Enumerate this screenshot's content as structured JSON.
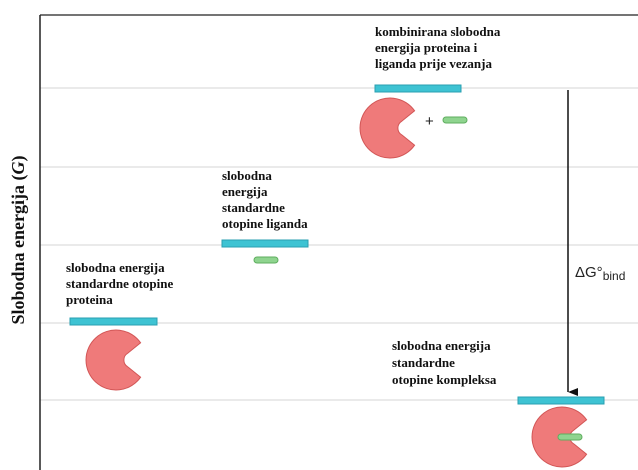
{
  "axis_label": [
    "Slobodna energija (",
    "G",
    ")"
  ],
  "levels": [
    {
      "label": [
        "slobodna energija",
        "standardne otopine",
        "proteina"
      ]
    },
    {
      "label": [
        "slobodna",
        "energija",
        "standardne",
        "otopine liganda"
      ]
    },
    {
      "label": [
        "kombinirana slobodna",
        "energija proteina i",
        "liganda prije vezanja"
      ]
    },
    {
      "label": [
        "slobodna energija",
        "standardne",
        "otopine kompleksa"
      ]
    }
  ],
  "plus": "+",
  "delta_g": {
    "symbol": "ΔG°",
    "subscript": "bind"
  }
}
